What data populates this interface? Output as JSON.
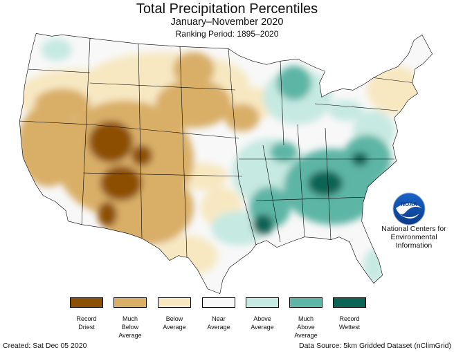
{
  "header": {
    "title": "Total Precipitation Percentiles",
    "subtitle": "January–November 2020",
    "ranking_period": "Ranking Period: 1895–2020"
  },
  "legend": {
    "items": [
      {
        "label": "Record\nDriest",
        "color": "#8c4f06"
      },
      {
        "label": "Much\nBelow\nAverage",
        "color": "#d9af68"
      },
      {
        "label": "Below\nAverage",
        "color": "#f7e8c2"
      },
      {
        "label": "Near\nAverage",
        "color": "#f8f8f8"
      },
      {
        "label": "Above\nAverage",
        "color": "#c6e9e1"
      },
      {
        "label": "Much\nAbove\nAverage",
        "color": "#5db5a6"
      },
      {
        "label": "Record\nWettest",
        "color": "#0c6455"
      }
    ]
  },
  "logo": {
    "text": "NOAA",
    "org": "National Centers for\nEnvironmental\nInformation"
  },
  "footer": {
    "created": "Created: Sat Dec 05 2020",
    "source": "Data Source: 5km Gridded Dataset (nClimGrid)"
  }
}
